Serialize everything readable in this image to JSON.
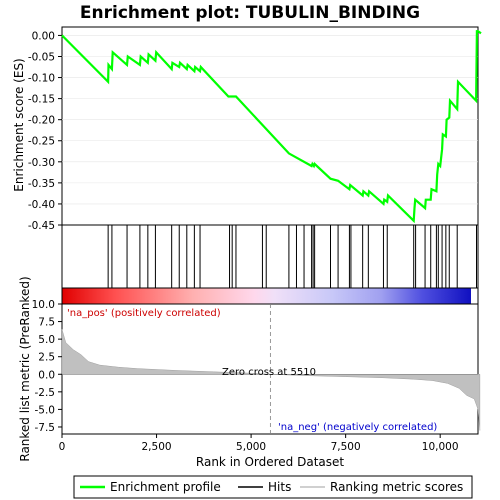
{
  "chart_data": {
    "type": "line",
    "title": "Enrichment plot: TUBULIN_BINDING",
    "xlabel": "Rank in Ordered Dataset",
    "ylabel_top": "Enrichment score (ES)",
    "ylabel_bottom": "Ranked list metric (PreRanked)",
    "xlim": [
      0,
      11000
    ],
    "ylim_top": [
      -0.45,
      0.02
    ],
    "ylim_bottom": [
      -8.5,
      10.0
    ],
    "x_ticks": [
      {
        "v": 0,
        "label": "0"
      },
      {
        "v": 2500,
        "label": "2,500"
      },
      {
        "v": 5000,
        "label": "5,000"
      },
      {
        "v": 7500,
        "label": "7,500"
      },
      {
        "v": 10000,
        "label": "10,000"
      }
    ],
    "y_ticks_top": [
      {
        "v": 0.0,
        "label": "0.00"
      },
      {
        "v": -0.05,
        "label": "-0.05"
      },
      {
        "v": -0.1,
        "label": "-0.10"
      },
      {
        "v": -0.15,
        "label": "-0.15"
      },
      {
        "v": -0.2,
        "label": "-0.20"
      },
      {
        "v": -0.25,
        "label": "-0.25"
      },
      {
        "v": -0.3,
        "label": "-0.30"
      },
      {
        "v": -0.35,
        "label": "-0.35"
      },
      {
        "v": -0.4,
        "label": "-0.40"
      },
      {
        "v": -0.45,
        "label": "-0.45"
      }
    ],
    "y_ticks_bottom": [
      {
        "v": 10.0,
        "label": "10.0"
      },
      {
        "v": 7.5,
        "label": "7.5"
      },
      {
        "v": 5.0,
        "label": "5.0"
      },
      {
        "v": 2.5,
        "label": "2.5"
      },
      {
        "v": 0.0,
        "label": "0.0"
      },
      {
        "v": -2.5,
        "label": "-2.5"
      },
      {
        "v": -5.0,
        "label": "-5.0"
      },
      {
        "v": -7.5,
        "label": "-7.5"
      }
    ],
    "enrichment_profile": {
      "name": "Enrichment profile",
      "color": "#00ff00",
      "points": [
        [
          0,
          0.0
        ],
        [
          1220,
          -0.11
        ],
        [
          1230,
          -0.07
        ],
        [
          1320,
          -0.08
        ],
        [
          1340,
          -0.04
        ],
        [
          1720,
          -0.07
        ],
        [
          1740,
          -0.05
        ],
        [
          2060,
          -0.07
        ],
        [
          2080,
          -0.05
        ],
        [
          2270,
          -0.065
        ],
        [
          2290,
          -0.045
        ],
        [
          2470,
          -0.06
        ],
        [
          2490,
          -0.04
        ],
        [
          2900,
          -0.08
        ],
        [
          2920,
          -0.065
        ],
        [
          3100,
          -0.075
        ],
        [
          3120,
          -0.065
        ],
        [
          3300,
          -0.08
        ],
        [
          3320,
          -0.07
        ],
        [
          3500,
          -0.085
        ],
        [
          3520,
          -0.075
        ],
        [
          3650,
          -0.085
        ],
        [
          3670,
          -0.075
        ],
        [
          4400,
          -0.145
        ],
        [
          4600,
          -0.145
        ],
        [
          6000,
          -0.28
        ],
        [
          6600,
          -0.31
        ],
        [
          6620,
          -0.305
        ],
        [
          6660,
          -0.31
        ],
        [
          6680,
          -0.305
        ],
        [
          7100,
          -0.34
        ],
        [
          7300,
          -0.345
        ],
        [
          7600,
          -0.365
        ],
        [
          7620,
          -0.355
        ],
        [
          7950,
          -0.38
        ],
        [
          7970,
          -0.37
        ],
        [
          8100,
          -0.38
        ],
        [
          8120,
          -0.37
        ],
        [
          8500,
          -0.4
        ],
        [
          8520,
          -0.39
        ],
        [
          8600,
          -0.395
        ],
        [
          8620,
          -0.38
        ],
        [
          9300,
          -0.44
        ],
        [
          9320,
          -0.41
        ],
        [
          9340,
          -0.39
        ],
        [
          9600,
          -0.41
        ],
        [
          9620,
          -0.39
        ],
        [
          9750,
          -0.39
        ],
        [
          9770,
          -0.365
        ],
        [
          9900,
          -0.37
        ],
        [
          9920,
          -0.33
        ],
        [
          9950,
          -0.305
        ],
        [
          10000,
          -0.31
        ],
        [
          10050,
          -0.27
        ],
        [
          10070,
          -0.235
        ],
        [
          10150,
          -0.24
        ],
        [
          10170,
          -0.2
        ],
        [
          10240,
          -0.195
        ],
        [
          10260,
          -0.155
        ],
        [
          10450,
          -0.175
        ],
        [
          10470,
          -0.11
        ],
        [
          10950,
          -0.155
        ],
        [
          10970,
          0.01
        ],
        [
          11000,
          0.01
        ],
        [
          11080,
          0.005
        ]
      ]
    },
    "hits": [
      1220,
      1320,
      1720,
      2060,
      2270,
      2470,
      2900,
      3100,
      3300,
      3500,
      3650,
      4430,
      4500,
      4600,
      5300,
      5400,
      6000,
      6200,
      6400,
      6600,
      6640,
      6680,
      7100,
      7300,
      7600,
      7640,
      7950,
      8100,
      8500,
      8600,
      9300,
      9350,
      9600,
      9750,
      9900,
      9950,
      10050,
      10150,
      10240,
      10450,
      10960
    ],
    "ranking_metric": [
      [
        0,
        6.4
      ],
      [
        100,
        4.5
      ],
      [
        300,
        3.5
      ],
      [
        500,
        2.8
      ],
      [
        700,
        1.8
      ],
      [
        1000,
        1.3
      ],
      [
        1500,
        1.0
      ],
      [
        2000,
        0.8
      ],
      [
        3000,
        0.55
      ],
      [
        4000,
        0.35
      ],
      [
        5000,
        0.15
      ],
      [
        5510,
        0.0
      ],
      [
        6500,
        -0.2
      ],
      [
        7500,
        -0.35
      ],
      [
        8500,
        -0.5
      ],
      [
        9300,
        -0.7
      ],
      [
        9800,
        -0.9
      ],
      [
        10200,
        -1.3
      ],
      [
        10500,
        -2.0
      ],
      [
        10700,
        -3.0
      ],
      [
        10900,
        -3.5
      ],
      [
        11000,
        -5.0
      ],
      [
        11050,
        -8.0
      ]
    ],
    "zero_cross": 5510,
    "annotations": {
      "pos": "'na_pos' (positively correlated)",
      "neg": "'na_neg' (negatively correlated)",
      "zero": "Zero cross at 5510"
    },
    "legend": [
      {
        "label": "Enrichment profile",
        "color": "#00ff00"
      },
      {
        "label": "Hits",
        "color": "#000000"
      },
      {
        "label": "Ranking metric scores",
        "color": "#c0c0c0"
      }
    ]
  }
}
